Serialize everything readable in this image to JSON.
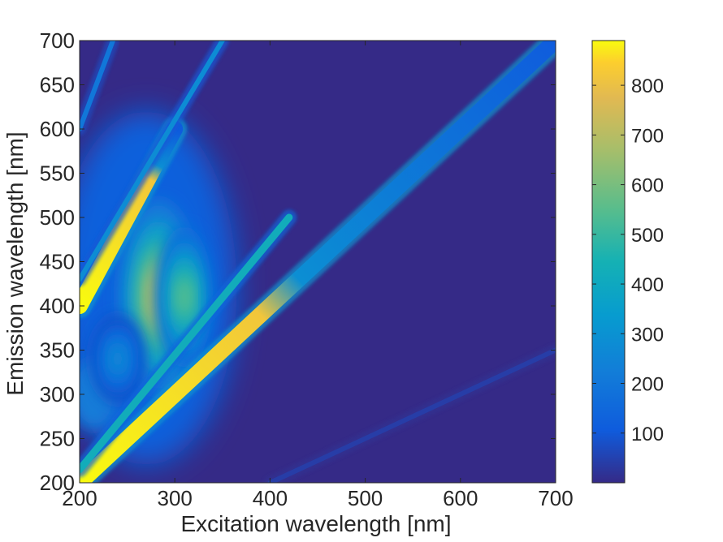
{
  "chart_data": {
    "type": "heatmap",
    "title": "",
    "xlabel": "Excitation wavelength [nm]",
    "ylabel": "Emission wavelength [nm]",
    "xlim": [
      200,
      700
    ],
    "ylim": [
      200,
      700
    ],
    "x_ticks": [
      200,
      300,
      400,
      500,
      600,
      700
    ],
    "y_ticks": [
      200,
      250,
      300,
      350,
      400,
      450,
      500,
      550,
      600,
      650,
      700
    ],
    "colorbar": {
      "ticks": [
        100,
        200,
        300,
        400,
        500,
        600,
        700,
        800
      ],
      "range": [
        0,
        890
      ],
      "colormap": "parula",
      "low_color": "#352a87",
      "high_color": "#f9fb0e"
    },
    "features": [
      {
        "name": "Rayleigh scattering (Em = Ex)",
        "x": [
          200,
          700
        ],
        "y": [
          200,
          700
        ],
        "peak_intensity": 890,
        "note": "saturated from 200 to ~400 nm excitation"
      },
      {
        "name": "Raman scattering",
        "x": [
          200,
          420
        ],
        "y": [
          215,
          500
        ],
        "peak_intensity": 420
      },
      {
        "name": "Second-order Rayleigh (Em = 2·Ex)",
        "x": [
          200,
          300
        ],
        "y": [
          400,
          600
        ],
        "peak_intensity": 890
      },
      {
        "name": "Second-order Raman",
        "x": [
          200,
          350
        ],
        "y": [
          430,
          700
        ],
        "peak_intensity": 280
      },
      {
        "name": "Upper scatter line",
        "x": [
          200,
          235
        ],
        "y": [
          600,
          700
        ],
        "peak_intensity": 200
      },
      {
        "name": "Half-order scatter",
        "x": [
          400,
          700
        ],
        "y": [
          200,
          350
        ],
        "peak_intensity": 40
      },
      {
        "name": "Fluorescence peak",
        "x": 283,
        "y": 410,
        "peak_intensity": 720
      },
      {
        "name": "Fluorescence shoulder",
        "x": 310,
        "y": 410,
        "peak_intensity": 550
      },
      {
        "name": "Fluorescence region",
        "x": 240,
        "y": 340,
        "peak_intensity": 260
      }
    ]
  }
}
